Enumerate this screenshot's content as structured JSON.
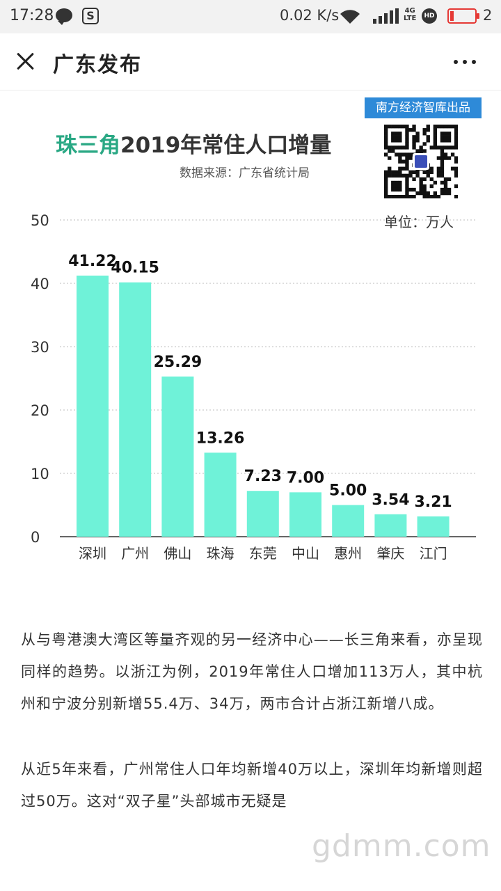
{
  "status_bar": {
    "time": "17:28",
    "speed": "0.02 K/s",
    "network": "4G",
    "network_sub": "LTE",
    "hd": "HD",
    "battery_num": "2"
  },
  "header": {
    "title": "广东发布"
  },
  "infographic": {
    "badge": "南方经济智库出品",
    "title_accent": "珠三角",
    "title_rest": "2019年常住人口增量",
    "source": "数据来源：广东省统计局",
    "unit": "单位：万人",
    "bar_color": "#6ff2d8"
  },
  "chart_data": {
    "type": "bar",
    "title": "珠三角2019年常住人口增量",
    "categories": [
      "深圳",
      "广州",
      "佛山",
      "珠海",
      "东莞",
      "中山",
      "惠州",
      "肇庆",
      "江门"
    ],
    "values": [
      41.22,
      40.15,
      25.29,
      13.26,
      7.23,
      7.0,
      5.0,
      3.54,
      3.21
    ],
    "data_labels": [
      "41.22",
      "40.15",
      "25.29",
      "13.26",
      "7.23",
      "7.00",
      "5.00",
      "3.54",
      "3.21"
    ],
    "ylim": [
      0,
      50
    ],
    "yticks": [
      0,
      10,
      20,
      30,
      40,
      50
    ],
    "grid": true,
    "ylabel": "",
    "xlabel": ""
  },
  "article": {
    "paragraphs": [
      "从与粤港澳大湾区等量齐观的另一经济中心——长三角来看，亦呈现同样的趋势。以浙江为例，2019年常住人口增加113万人，其中杭州和宁波分别新增55.4万、34万，两市合计占浙江新增八成。",
      "从近5年来看，广州常住人口年均新增40万以上，深圳年均新增则超过50万。这对“双子星”头部城市无疑是"
    ]
  },
  "watermark": "gdmm.com"
}
